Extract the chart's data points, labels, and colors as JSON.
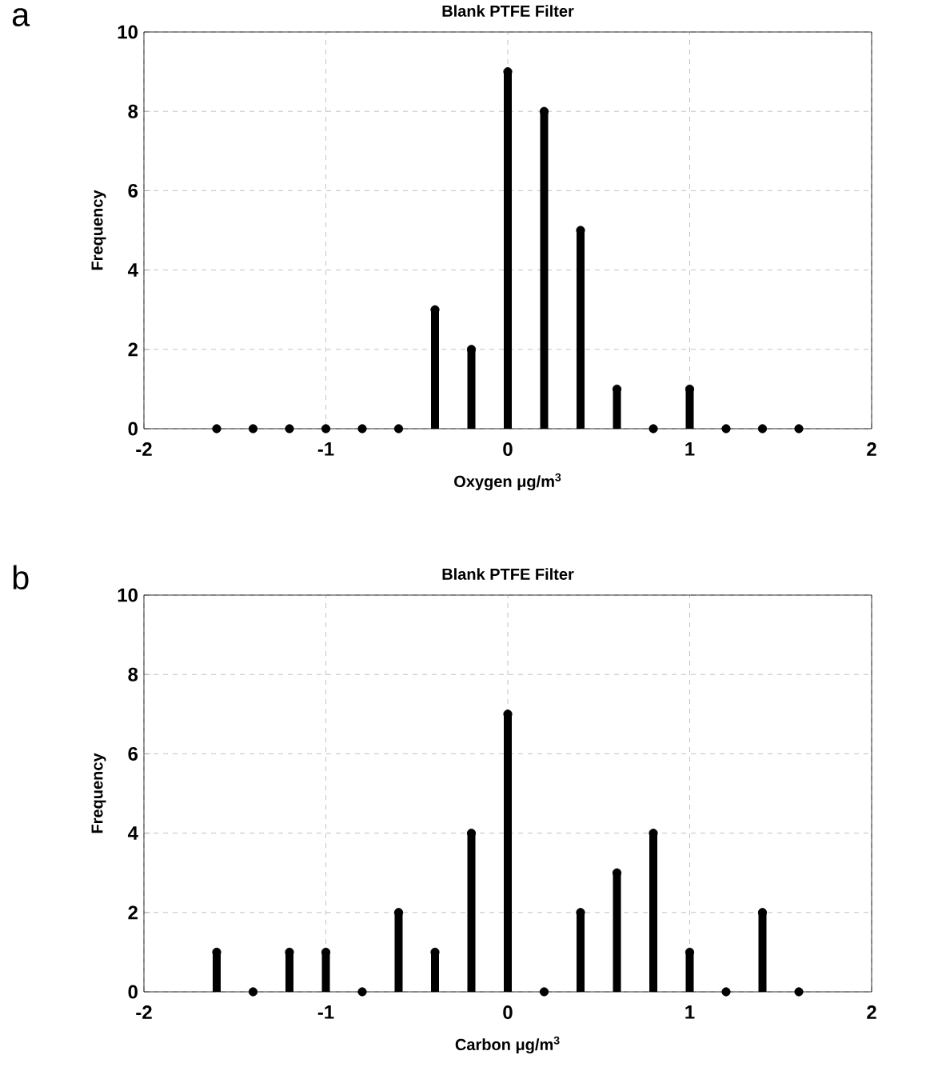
{
  "chart_data": [
    {
      "type": "lollipop",
      "title": "Blank PTFE Filter",
      "xlabel": "Oxygen μg/m$^{3}$",
      "ylabel": "Frequency",
      "annotations": [
        "a"
      ],
      "x": [
        -1.6,
        -1.4,
        -1.2,
        -1.0,
        -0.8,
        -0.6,
        -0.4,
        -0.2,
        0,
        0.2,
        0.4,
        0.6,
        0.8,
        1.0,
        1.2,
        1.4,
        1.6
      ],
      "values": [
        0,
        0,
        0,
        0,
        0,
        0,
        3,
        2,
        9,
        8,
        5,
        1,
        0,
        1,
        0,
        0,
        0
      ],
      "color": "#000000",
      "marker": "circle",
      "xlim": [
        -2,
        2
      ],
      "xticks": [
        -2,
        -1,
        0,
        1,
        2
      ],
      "ylim": [
        0,
        10
      ],
      "yticks": [
        0,
        2,
        4,
        6,
        8,
        10
      ],
      "grid": true
    },
    {
      "type": "lollipop",
      "title": "Blank PTFE Filter",
      "xlabel": "Carbon μg/m$^{3}$",
      "ylabel": "Frequency",
      "annotations": [
        "b"
      ],
      "x": [
        -1.6,
        -1.4,
        -1.2,
        -1.0,
        -0.8,
        -0.6,
        -0.4,
        -0.2,
        0,
        0.2,
        0.4,
        0.6,
        0.8,
        1.0,
        1.2,
        1.4,
        1.6
      ],
      "values": [
        1,
        0,
        1,
        1,
        0,
        2,
        1,
        4,
        7,
        0,
        2,
        3,
        4,
        1,
        0,
        2,
        0
      ],
      "color": "#000000",
      "marker": "circle",
      "xlim": [
        -2,
        2
      ],
      "xticks": [
        -2,
        -1,
        0,
        1,
        2
      ],
      "ylim": [
        0,
        10
      ],
      "yticks": [
        0,
        2,
        4,
        6,
        8,
        10
      ],
      "grid": true
    }
  ]
}
